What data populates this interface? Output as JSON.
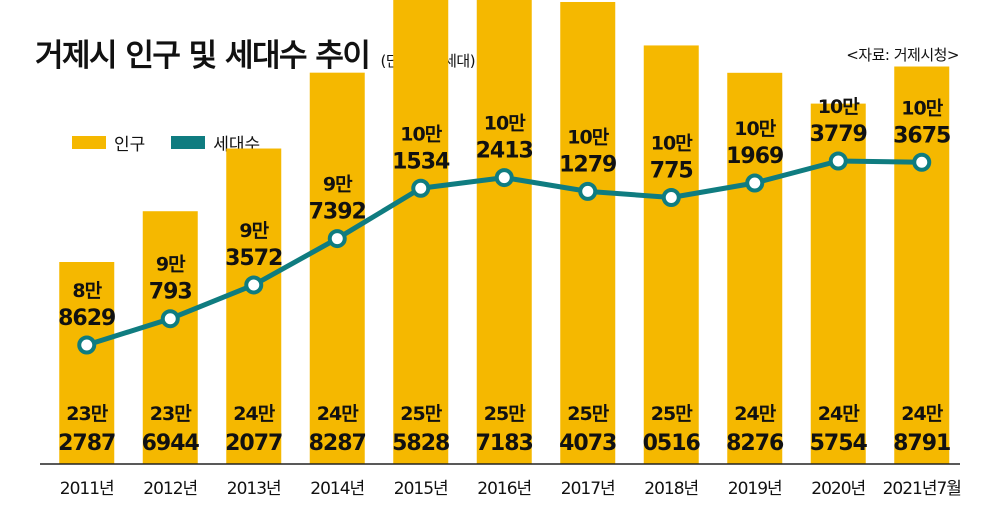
{
  "title": "거제시 인구 및 세대수 추이",
  "unit": "(단위: 명, 세대)",
  "source": "<자료: 거제시청>",
  "colors": {
    "population": "#F5B800",
    "households": "#0F7C80",
    "axis": "#222222"
  },
  "chart_data": {
    "type": "bar",
    "categories": [
      "2011년",
      "2012년",
      "2013년",
      "2014년",
      "2015년",
      "2016년",
      "2017년",
      "2018년",
      "2019년",
      "2020년",
      "2021년7월"
    ],
    "series": [
      {
        "name": "인구",
        "type": "bar",
        "values": [
          232787,
          236944,
          242077,
          248287,
          255828,
          257183,
          254073,
          250516,
          248276,
          245754,
          248791
        ],
        "labels": [
          [
            "23만",
            "2787"
          ],
          [
            "23만",
            "6944"
          ],
          [
            "24만",
            "2077"
          ],
          [
            "24만",
            "8287"
          ],
          [
            "25만",
            "5828"
          ],
          [
            "25만",
            "7183"
          ],
          [
            "25만",
            "4073"
          ],
          [
            "25만",
            "0516"
          ],
          [
            "24만",
            "8276"
          ],
          [
            "24만",
            "5754"
          ],
          [
            "24만",
            "8791"
          ]
        ]
      },
      {
        "name": "세대수",
        "type": "line",
        "values": [
          88629,
          90793,
          93572,
          97392,
          101534,
          102413,
          101279,
          100775,
          101969,
          103779,
          103675
        ],
        "labels": [
          [
            "8만",
            "8629"
          ],
          [
            "9만",
            "793"
          ],
          [
            "9만",
            "3572"
          ],
          [
            "9만",
            "7392"
          ],
          [
            "10만",
            "1534"
          ],
          [
            "10만",
            "2413"
          ],
          [
            "10만",
            "1279"
          ],
          [
            "10만",
            "775"
          ],
          [
            "10만",
            "1969"
          ],
          [
            "10만",
            "3779"
          ],
          [
            "10만",
            "3675"
          ]
        ]
      }
    ]
  }
}
